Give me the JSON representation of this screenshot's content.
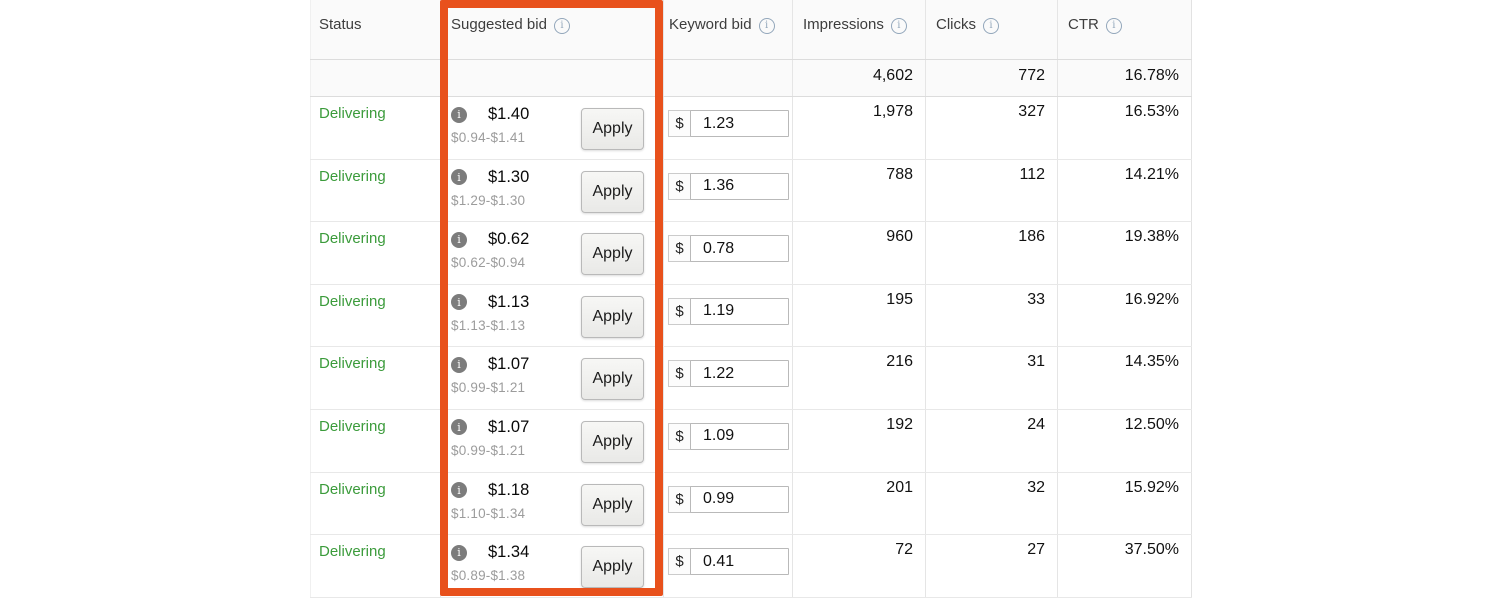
{
  "highlight": {
    "color": "#e8511c"
  },
  "colors": {
    "status_delivering": "#3b9b3b"
  },
  "table": {
    "headers": {
      "status": "Status",
      "suggested_bid": "Suggested bid",
      "keyword_bid": "Keyword bid",
      "impressions": "Impressions",
      "clicks": "Clicks",
      "ctr": "CTR"
    },
    "summary": {
      "impressions": "4,602",
      "clicks": "772",
      "ctr": "16.78%"
    },
    "currency_symbol": "$",
    "apply_label": "Apply",
    "rows": [
      {
        "status": "Delivering",
        "suggested_bid": "$1.40",
        "bid_range": "$0.94-$1.41",
        "keyword_bid": "1.23",
        "impressions": "1,978",
        "clicks": "327",
        "ctr": "16.53%"
      },
      {
        "status": "Delivering",
        "suggested_bid": "$1.30",
        "bid_range": "$1.29-$1.30",
        "keyword_bid": "1.36",
        "impressions": "788",
        "clicks": "112",
        "ctr": "14.21%"
      },
      {
        "status": "Delivering",
        "suggested_bid": "$0.62",
        "bid_range": "$0.62-$0.94",
        "keyword_bid": "0.78",
        "impressions": "960",
        "clicks": "186",
        "ctr": "19.38%"
      },
      {
        "status": "Delivering",
        "suggested_bid": "$1.13",
        "bid_range": "$1.13-$1.13",
        "keyword_bid": "1.19",
        "impressions": "195",
        "clicks": "33",
        "ctr": "16.92%"
      },
      {
        "status": "Delivering",
        "suggested_bid": "$1.07",
        "bid_range": "$0.99-$1.21",
        "keyword_bid": "1.22",
        "impressions": "216",
        "clicks": "31",
        "ctr": "14.35%"
      },
      {
        "status": "Delivering",
        "suggested_bid": "$1.07",
        "bid_range": "$0.99-$1.21",
        "keyword_bid": "1.09",
        "impressions": "192",
        "clicks": "24",
        "ctr": "12.50%"
      },
      {
        "status": "Delivering",
        "suggested_bid": "$1.18",
        "bid_range": "$1.10-$1.34",
        "keyword_bid": "0.99",
        "impressions": "201",
        "clicks": "32",
        "ctr": "15.92%"
      },
      {
        "status": "Delivering",
        "suggested_bid": "$1.34",
        "bid_range": "$0.89-$1.38",
        "keyword_bid": "0.41",
        "impressions": "72",
        "clicks": "27",
        "ctr": "37.50%"
      }
    ]
  }
}
